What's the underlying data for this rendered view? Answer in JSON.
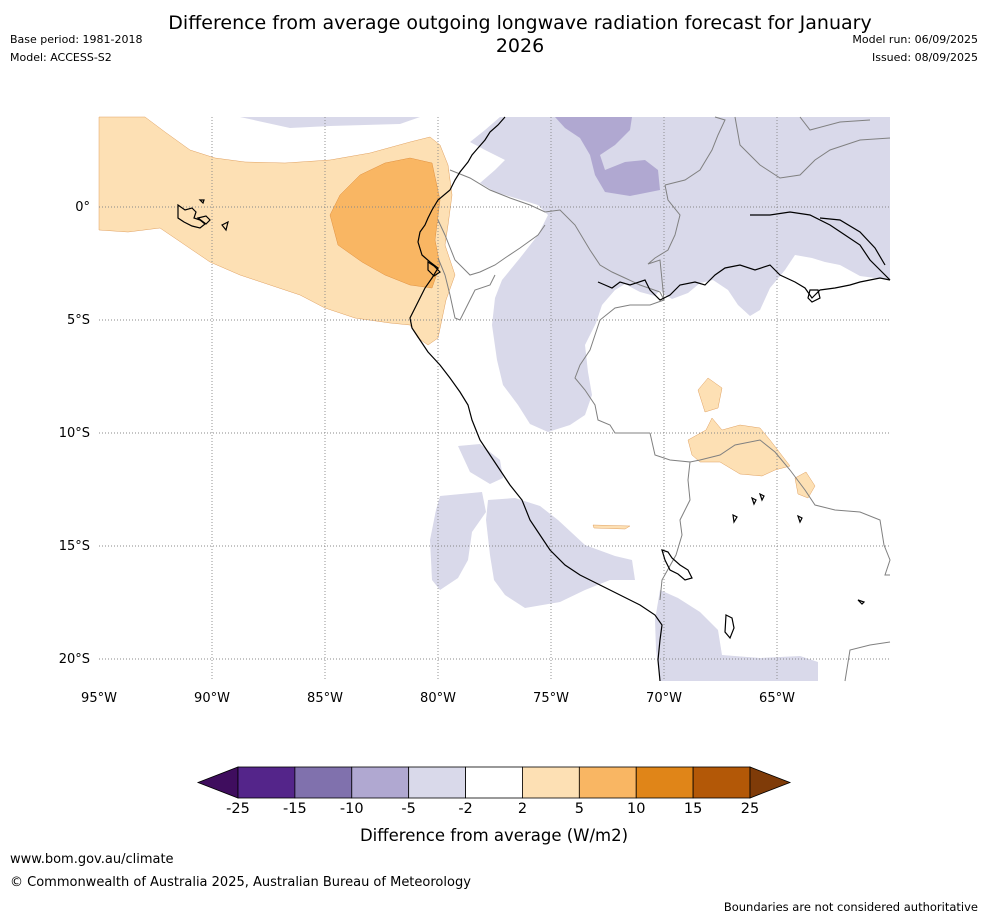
{
  "title": "Difference from average outgoing longwave radiation forecast for January 2026",
  "meta_left": {
    "base_period": "Base period: 1981-2018",
    "model": "Model: ACCESS-S2"
  },
  "meta_right": {
    "model_run": "Model run: 06/09/2025",
    "issued": "Issued: 08/09/2025"
  },
  "map": {
    "lat_labels": [
      "0°",
      "5°S",
      "10°S",
      "15°S",
      "20°S"
    ],
    "lon_labels": [
      "95°W",
      "90°W",
      "85°W",
      "80°W",
      "75°W",
      "70°W",
      "65°W"
    ],
    "colors": {
      "land_border": "#000000",
      "country_border": "#808080",
      "grid": "#888888"
    }
  },
  "colorbar": {
    "ticks": [
      "-25",
      "-15",
      "-10",
      "-5",
      "-2",
      "2",
      "5",
      "10",
      "15",
      "25"
    ],
    "colors": [
      "#3f0d5e",
      "#54258a",
      "#8071ad",
      "#b0a8d1",
      "#d9d9ea",
      "#ffffff",
      "#fde0b4",
      "#f9b663",
      "#e08518",
      "#b35807",
      "#7f3b08"
    ],
    "title": "Difference from average (W/m2)"
  },
  "footer": {
    "url": "www.bom.gov.au/climate",
    "copyright": "© Commonwealth of Australia 2025, Australian Bureau of Meteorology",
    "disclaimer": "Boundaries are not considered authoritative"
  }
}
